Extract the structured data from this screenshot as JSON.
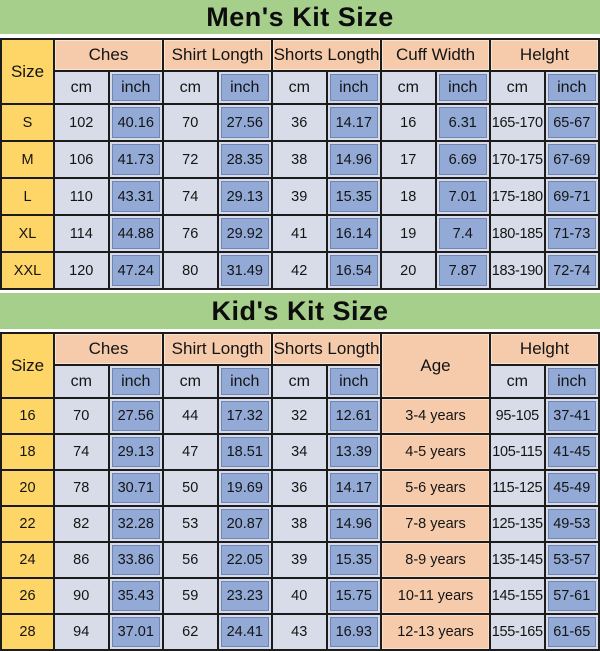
{
  "colors": {
    "band_green": "#a7cf8c",
    "size_yellow": "#fdd667",
    "header_peach": "#f6cbab",
    "cell_light": "#d8dce8",
    "cell_blue": "#93aad6",
    "pill_border": "#7085b3",
    "grid_black": "#1b1b1b"
  },
  "chart_data": [
    {
      "type": "table",
      "title": "Men's Kit Size",
      "size_header": "Size",
      "column_groups": [
        {
          "label": "Ches",
          "subs": [
            "cm",
            "inch"
          ]
        },
        {
          "label": "Shirt Longth",
          "subs": [
            "cm",
            "inch"
          ]
        },
        {
          "label": "Shorts Longth",
          "subs": [
            "cm",
            "inch"
          ]
        },
        {
          "label": "Cuff Width",
          "subs": [
            "cm",
            "inch"
          ]
        },
        {
          "label": "Helght",
          "subs": [
            "cm",
            "inch"
          ]
        }
      ],
      "rows": [
        {
          "size": "S",
          "values": [
            "102",
            "40.16",
            "70",
            "27.56",
            "36",
            "14.17",
            "16",
            "6.31",
            "165-170",
            "65-67"
          ]
        },
        {
          "size": "M",
          "values": [
            "106",
            "41.73",
            "72",
            "28.35",
            "38",
            "14.96",
            "17",
            "6.69",
            "170-175",
            "67-69"
          ]
        },
        {
          "size": "L",
          "values": [
            "110",
            "43.31",
            "74",
            "29.13",
            "39",
            "15.35",
            "18",
            "7.01",
            "175-180",
            "69-71"
          ]
        },
        {
          "size": "XL",
          "values": [
            "114",
            "44.88",
            "76",
            "29.92",
            "41",
            "16.14",
            "19",
            "7.4",
            "180-185",
            "71-73"
          ]
        },
        {
          "size": "XXL",
          "values": [
            "120",
            "47.24",
            "80",
            "31.49",
            "42",
            "16.54",
            "20",
            "7.87",
            "183-190",
            "72-74"
          ]
        }
      ]
    },
    {
      "type": "table",
      "title": "Kid's Kit Size",
      "size_header": "Size",
      "column_groups": [
        {
          "label": "Ches",
          "subs": [
            "cm",
            "inch"
          ]
        },
        {
          "label": "Shirt Longth",
          "subs": [
            "cm",
            "inch"
          ]
        },
        {
          "label": "Shorts Longth",
          "subs": [
            "cm",
            "inch"
          ]
        },
        {
          "label": "Age",
          "subs": []
        },
        {
          "label": "Helght",
          "subs": [
            "cm",
            "inch"
          ]
        }
      ],
      "rows": [
        {
          "size": "16",
          "values": [
            "70",
            "27.56",
            "44",
            "17.32",
            "32",
            "12.61",
            "3-4 years",
            "95-105",
            "37-41"
          ]
        },
        {
          "size": "18",
          "values": [
            "74",
            "29.13",
            "47",
            "18.51",
            "34",
            "13.39",
            "4-5 years",
            "105-115",
            "41-45"
          ]
        },
        {
          "size": "20",
          "values": [
            "78",
            "30.71",
            "50",
            "19.69",
            "36",
            "14.17",
            "5-6 years",
            "115-125",
            "45-49"
          ]
        },
        {
          "size": "22",
          "values": [
            "82",
            "32.28",
            "53",
            "20.87",
            "38",
            "14.96",
            "7-8 years",
            "125-135",
            "49-53"
          ]
        },
        {
          "size": "24",
          "values": [
            "86",
            "33.86",
            "56",
            "22.05",
            "39",
            "15.35",
            "8-9 years",
            "135-145",
            "53-57"
          ]
        },
        {
          "size": "26",
          "values": [
            "90",
            "35.43",
            "59",
            "23.23",
            "40",
            "15.75",
            "10-11 years",
            "145-155",
            "57-61"
          ]
        },
        {
          "size": "28",
          "values": [
            "94",
            "37.01",
            "62",
            "24.41",
            "43",
            "16.93",
            "12-13 years",
            "155-165",
            "61-65"
          ]
        }
      ]
    }
  ]
}
